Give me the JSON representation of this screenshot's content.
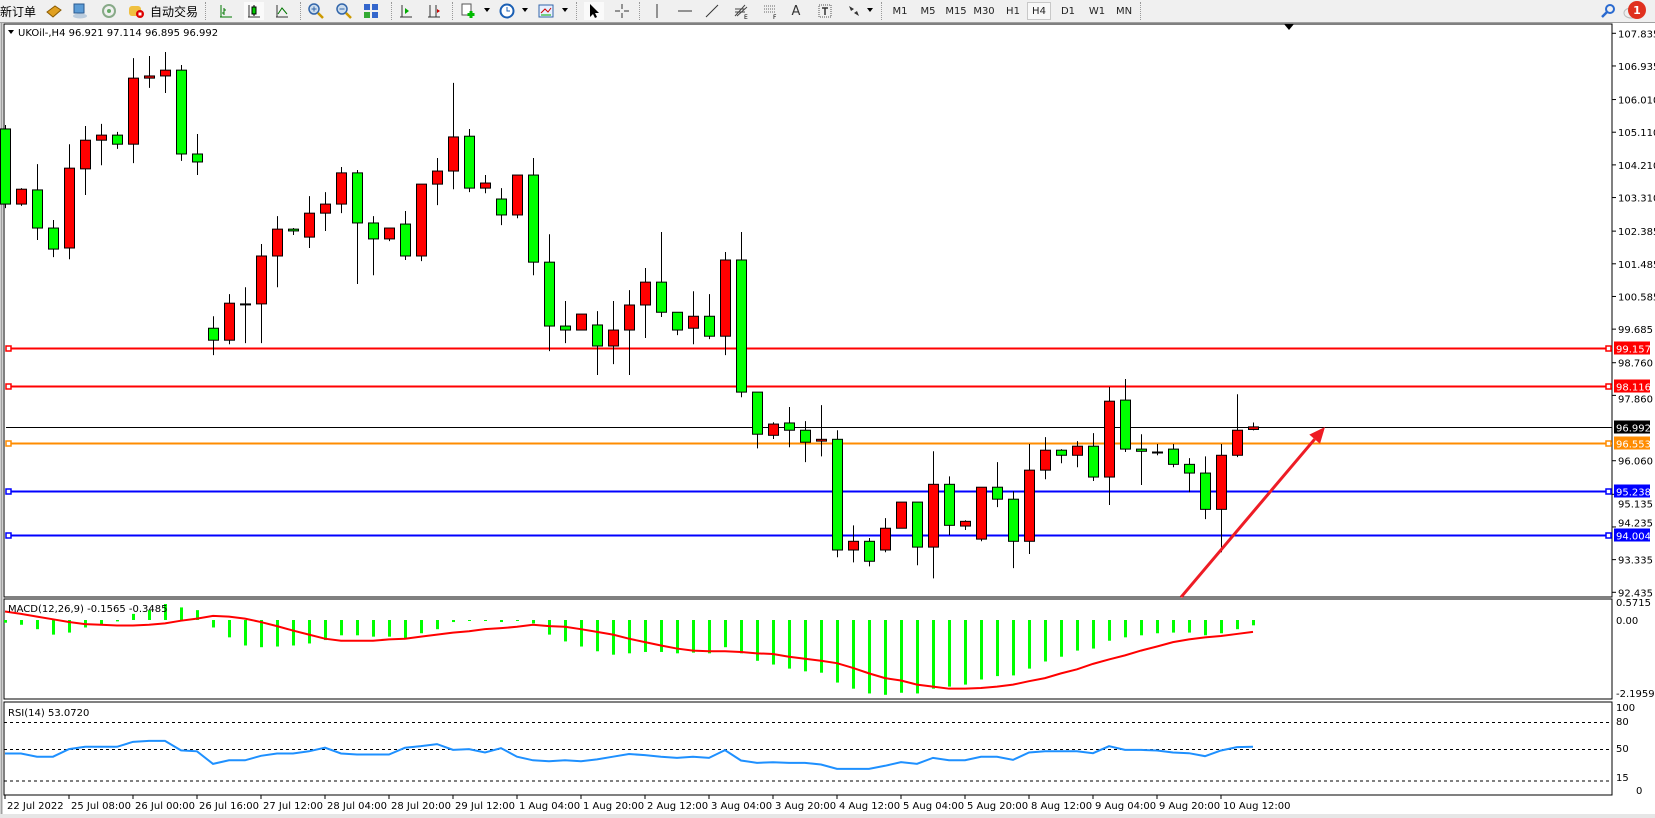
{
  "toolbar": {
    "new_order_label": "新订单",
    "autotrading_label": "自动交易",
    "icons": [
      "market-watch-icon",
      "terminal-icon",
      "signals-icon",
      "autotrading-icon",
      "bar-chart-icon",
      "candlestick-chart-icon",
      "line-chart-icon",
      "zoom-in-icon",
      "zoom-out-icon",
      "tile-windows-icon",
      "auto-scroll-icon",
      "chart-shift-icon",
      "new-chart-icon",
      "periods-icon",
      "templates-icon",
      "cursor-icon",
      "crosshair-icon",
      "vertical-line-icon",
      "horizontal-line-icon",
      "trendline-icon",
      "fibonacci-expansion-icon",
      "fibonacci-fan-icon",
      "text-icon",
      "text-label-icon",
      "arrows-icon"
    ],
    "text_tool_label": "A",
    "timeframes": [
      "M1",
      "M5",
      "M15",
      "M30",
      "H1",
      "H4",
      "D1",
      "W1",
      "MN"
    ],
    "active_timeframe": "H4",
    "notification_count": "1"
  },
  "chart": {
    "title": "UKOil-,H4  96.921 97.114 96.895 96.992",
    "symbol": "UKOil-",
    "timeframe": "H4",
    "colors": {
      "bull": "#ff0000",
      "bear": "#00ff00",
      "bid_line": "#000000",
      "macd_hist": "#00ff00",
      "macd_signal": "#ff0000",
      "rsi": "#1e90ff",
      "arrow": "#ee1c25"
    },
    "price_axis": [
      "107.835",
      "106.935",
      "106.010",
      "105.110",
      "104.210",
      "103.310",
      "102.385",
      "101.485",
      "100.585",
      "99.685",
      "98.760",
      "97.860",
      "96.060",
      "95.135",
      "94.235",
      "93.335",
      "92.435"
    ],
    "levels": [
      {
        "price": "99.157",
        "color": "#ff0000"
      },
      {
        "price": "98.116",
        "color": "#ff0000"
      },
      {
        "price": "96.992",
        "color": "#000000"
      },
      {
        "price": "96.553",
        "color": "#ff8c00"
      },
      {
        "price": "95.238",
        "color": "#0000ff"
      },
      {
        "price": "94.004",
        "color": "#0000ff"
      }
    ],
    "time_axis": [
      "22 Jul 2022",
      "25 Jul 08:00",
      "26 Jul 00:00",
      "26 Jul 16:00",
      "27 Jul 12:00",
      "28 Jul 04:00",
      "28 Jul 20:00",
      "29 Jul 12:00",
      "1 Aug 04:00",
      "1 Aug 20:00",
      "2 Aug 12:00",
      "3 Aug 04:00",
      "3 Aug 20:00",
      "4 Aug 12:00",
      "5 Aug 04:00",
      "5 Aug 20:00",
      "8 Aug 12:00",
      "9 Aug 04:00",
      "9 Aug 20:00",
      "10 Aug 12:00"
    ],
    "arrow": {
      "from_price": 92.3,
      "from_bar": 73.5,
      "to_price": 96.99,
      "to_bar": 82.5
    }
  },
  "chart_data": {
    "type": "candlestick",
    "ylim": [
      92.435,
      107.835
    ],
    "ohlc": [
      [
        105.2,
        105.31,
        103.02,
        103.13
      ],
      [
        103.13,
        103.57,
        103.08,
        103.54
      ],
      [
        103.52,
        104.23,
        102.14,
        102.47
      ],
      [
        102.47,
        102.69,
        101.67,
        101.89
      ],
      [
        101.92,
        104.78,
        101.61,
        104.12
      ],
      [
        104.1,
        105.28,
        103.38,
        104.89
      ],
      [
        104.89,
        105.34,
        104.2,
        105.03
      ],
      [
        105.03,
        105.12,
        104.65,
        104.78
      ],
      [
        104.78,
        107.15,
        104.26,
        106.6
      ],
      [
        106.6,
        107.21,
        106.33,
        106.66
      ],
      [
        106.66,
        107.32,
        106.19,
        106.82
      ],
      [
        106.82,
        106.96,
        104.32,
        104.51
      ],
      [
        104.51,
        105.06,
        103.93,
        104.29
      ],
      [
        99.71,
        100.04,
        98.97,
        99.38
      ],
      [
        99.38,
        100.65,
        99.27,
        100.4
      ],
      [
        100.38,
        100.84,
        99.3,
        100.38
      ],
      [
        100.38,
        102.03,
        99.3,
        101.7
      ],
      [
        101.7,
        102.8,
        100.84,
        102.44
      ],
      [
        102.44,
        102.47,
        102.28,
        102.39
      ],
      [
        102.22,
        103.35,
        101.92,
        102.88
      ],
      [
        102.88,
        103.46,
        102.39,
        103.13
      ],
      [
        103.13,
        104.15,
        102.88,
        103.99
      ],
      [
        103.99,
        104.07,
        100.93,
        102.61
      ],
      [
        102.61,
        102.8,
        101.17,
        102.17
      ],
      [
        102.17,
        102.47,
        102.11,
        102.47
      ],
      [
        102.58,
        102.94,
        101.59,
        101.7
      ],
      [
        101.7,
        103.68,
        101.56,
        103.68
      ],
      [
        103.68,
        104.4,
        103.1,
        104.04
      ],
      [
        104.04,
        106.47,
        103.54,
        104.98
      ],
      [
        105.0,
        105.2,
        103.46,
        103.57
      ],
      [
        103.57,
        103.93,
        103.43,
        103.71
      ],
      [
        103.27,
        103.57,
        102.55,
        102.83
      ],
      [
        102.83,
        103.93,
        102.74,
        103.93
      ],
      [
        103.93,
        104.4,
        101.17,
        101.53
      ],
      [
        101.53,
        102.3,
        99.08,
        99.77
      ],
      [
        99.77,
        100.46,
        99.3,
        99.66
      ],
      [
        99.66,
        100.1,
        99.66,
        100.1
      ],
      [
        99.8,
        100.18,
        98.42,
        99.22
      ],
      [
        99.22,
        100.46,
        98.72,
        99.66
      ],
      [
        99.66,
        100.76,
        98.42,
        100.35
      ],
      [
        100.35,
        101.37,
        99.44,
        100.98
      ],
      [
        100.98,
        102.36,
        100.02,
        100.15
      ],
      [
        100.15,
        100.15,
        99.52,
        99.66
      ],
      [
        99.71,
        100.73,
        99.27,
        100.04
      ],
      [
        100.04,
        100.65,
        99.41,
        99.49
      ],
      [
        99.49,
        101.81,
        98.97,
        101.59
      ],
      [
        101.59,
        102.36,
        97.81,
        97.95
      ],
      [
        97.95,
        97.95,
        96.4,
        96.79
      ],
      [
        96.76,
        97.12,
        96.66,
        97.07
      ],
      [
        97.1,
        97.54,
        96.43,
        96.9
      ],
      [
        96.9,
        97.15,
        96.02,
        96.57
      ],
      [
        96.6,
        97.59,
        96.18,
        96.65
      ],
      [
        96.65,
        96.9,
        93.4,
        93.6
      ],
      [
        93.6,
        94.28,
        93.26,
        93.84
      ],
      [
        93.84,
        93.93,
        93.15,
        93.29
      ],
      [
        93.6,
        94.48,
        93.54,
        94.2
      ],
      [
        94.2,
        94.92,
        94.2,
        94.92
      ],
      [
        94.92,
        94.92,
        93.18,
        93.68
      ],
      [
        93.68,
        96.32,
        92.82,
        95.41
      ],
      [
        95.41,
        95.63,
        94.01,
        94.28
      ],
      [
        94.26,
        94.42,
        94.15,
        94.39
      ],
      [
        93.9,
        95.33,
        93.84,
        95.33
      ],
      [
        95.33,
        96.02,
        94.78,
        95.0
      ],
      [
        95.0,
        95.22,
        93.1,
        93.84
      ],
      [
        93.84,
        96.52,
        93.49,
        95.8
      ],
      [
        95.8,
        96.71,
        95.55,
        96.35
      ],
      [
        96.35,
        96.38,
        95.99,
        96.21
      ],
      [
        96.21,
        96.6,
        95.88,
        96.46
      ],
      [
        96.46,
        96.82,
        95.5,
        95.61
      ],
      [
        95.61,
        98.09,
        94.84,
        97.7
      ],
      [
        97.73,
        98.31,
        96.3,
        96.38
      ],
      [
        96.38,
        96.79,
        95.39,
        96.32
      ],
      [
        96.3,
        96.52,
        96.21,
        96.3
      ],
      [
        96.38,
        96.52,
        95.88,
        95.96
      ],
      [
        95.96,
        96.13,
        95.19,
        95.72
      ],
      [
        95.72,
        96.18,
        94.45,
        94.72
      ],
      [
        94.72,
        96.52,
        93.54,
        96.21
      ],
      [
        96.21,
        97.89,
        96.16,
        96.9
      ],
      [
        96.921,
        97.114,
        96.895,
        96.992
      ]
    ],
    "macd": {
      "label": "MACD(12,26,9) -0.1565 -0.3485",
      "axis": [
        "0.5715",
        "0.00",
        "-2.1959"
      ],
      "ylim": [
        -2.1959,
        0.5715
      ],
      "histogram": [
        -0.08,
        -0.14,
        -0.27,
        -0.43,
        -0.37,
        -0.22,
        -0.14,
        -0.04,
        0.18,
        0.29,
        0.47,
        0.37,
        0.29,
        -0.22,
        -0.51,
        -0.75,
        -0.8,
        -0.78,
        -0.75,
        -0.69,
        -0.59,
        -0.45,
        -0.45,
        -0.49,
        -0.49,
        -0.55,
        -0.39,
        -0.27,
        -0.06,
        -0.02,
        -0.02,
        -0.06,
        -0.02,
        -0.1,
        -0.43,
        -0.63,
        -0.78,
        -0.92,
        -1.02,
        -0.98,
        -0.94,
        -0.94,
        -0.98,
        -0.96,
        -0.98,
        -0.8,
        -0.98,
        -1.2,
        -1.31,
        -1.43,
        -1.51,
        -1.55,
        -1.84,
        -2.02,
        -2.16,
        -2.2,
        -2.14,
        -2.16,
        -2.02,
        -1.96,
        -1.9,
        -1.75,
        -1.65,
        -1.63,
        -1.43,
        -1.22,
        -1.08,
        -0.9,
        -0.84,
        -0.61,
        -0.51,
        -0.45,
        -0.39,
        -0.37,
        -0.37,
        -0.45,
        -0.39,
        -0.27,
        -0.1565
      ],
      "signal": [
        0.25,
        0.18,
        0.1,
        0.02,
        -0.06,
        -0.12,
        -0.14,
        -0.16,
        -0.16,
        -0.14,
        -0.1,
        -0.02,
        0.04,
        0.12,
        0.1,
        0.04,
        -0.06,
        -0.18,
        -0.31,
        -0.43,
        -0.55,
        -0.61,
        -0.61,
        -0.61,
        -0.57,
        -0.55,
        -0.49,
        -0.43,
        -0.37,
        -0.33,
        -0.27,
        -0.24,
        -0.2,
        -0.14,
        -0.18,
        -0.2,
        -0.27,
        -0.35,
        -0.43,
        -0.55,
        -0.65,
        -0.75,
        -0.84,
        -0.9,
        -0.92,
        -0.92,
        -0.94,
        -0.98,
        -1.0,
        -1.08,
        -1.14,
        -1.2,
        -1.27,
        -1.41,
        -1.57,
        -1.71,
        -1.78,
        -1.9,
        -1.96,
        -2.02,
        -2.02,
        -2.0,
        -1.96,
        -1.9,
        -1.8,
        -1.71,
        -1.57,
        -1.45,
        -1.29,
        -1.16,
        -1.04,
        -0.9,
        -0.78,
        -0.65,
        -0.57,
        -0.51,
        -0.47,
        -0.41,
        -0.3485
      ]
    },
    "rsi": {
      "label": "RSI(14) 53.0720",
      "axis": [
        "100",
        "80",
        "50",
        "15",
        "0"
      ],
      "levels": [
        80,
        50,
        15
      ],
      "ylim": [
        0,
        100
      ],
      "values": [
        45.6,
        45.6,
        42,
        42,
        50.4,
        53,
        53,
        53,
        58.5,
        59.6,
        59.6,
        49,
        48,
        34,
        38,
        38,
        43,
        45.6,
        45.6,
        48,
        52,
        45.6,
        44.4,
        44.4,
        44.4,
        52,
        53.7,
        56,
        49.6,
        50.4,
        46.7,
        51.5,
        42,
        38,
        37,
        38,
        37,
        39,
        42,
        45,
        43.7,
        41.9,
        40.7,
        41.9,
        40.7,
        49.3,
        37.8,
        35.2,
        35.9,
        35.2,
        35.2,
        33.3,
        28.5,
        28.5,
        28.5,
        31.9,
        35.9,
        34.1,
        40.7,
        38.1,
        38.1,
        41.9,
        41.9,
        38.5,
        46.7,
        48.1,
        48.1,
        48.1,
        45.9,
        53.7,
        49.6,
        49.6,
        48.9,
        46.7,
        45.9,
        42.6,
        48.9,
        52.6,
        53.072
      ]
    }
  }
}
